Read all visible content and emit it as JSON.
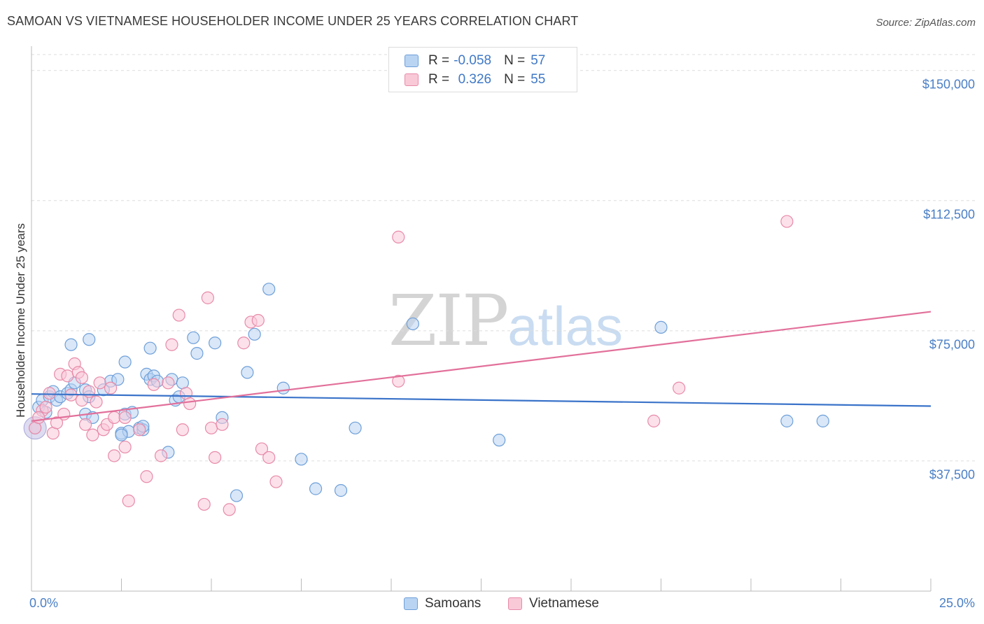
{
  "header": {
    "title": "SAMOAN VS VIETNAMESE HOUSEHOLDER INCOME UNDER 25 YEARS CORRELATION CHART",
    "source": "Source: ZipAtlas.com"
  },
  "watermark": {
    "zip": "ZIP",
    "atlas": "atlas"
  },
  "legend_top": {
    "rows": [
      {
        "r_label": "R =",
        "r_value": "-0.058",
        "n_label": "N =",
        "n_value": "57"
      },
      {
        "r_label": "R =",
        "r_value": "0.326",
        "n_label": "N =",
        "n_value": "55"
      }
    ]
  },
  "colors": {
    "samoans_fill": "#b9d4f3",
    "samoans_stroke": "#6e9fd9",
    "samoans_line": "#3a73c9",
    "vietnamese_fill": "#f9c9d8",
    "vietnamese_stroke": "#e88aa8",
    "vietnamese_line": "#e2709a"
  },
  "chart_data": {
    "type": "scatter",
    "title": "SAMOAN VS VIETNAMESE HOUSEHOLDER INCOME UNDER 25 YEARS CORRELATION CHART",
    "xlabel": "",
    "ylabel": "Householder Income Under 25 years",
    "xlim": [
      0,
      25
    ],
    "ylim": [
      0,
      157000
    ],
    "y_ticks": [
      {
        "value": 37500,
        "label": "$37,500"
      },
      {
        "value": 75000,
        "label": "$75,000"
      },
      {
        "value": 112500,
        "label": "$112,500"
      },
      {
        "value": 150000,
        "label": "$150,000"
      }
    ],
    "x_ticks": [
      {
        "value": 0,
        "label": "0.0%"
      },
      {
        "value": 25,
        "label": "25.0%"
      }
    ],
    "legend": [
      "Samoans",
      "Vietnamese"
    ],
    "series": [
      {
        "name": "Samoans",
        "r": -0.058,
        "n": 57,
        "trend": {
          "x": [
            0,
            25
          ],
          "y": [
            56800,
            53300
          ]
        },
        "points": [
          [
            0.1,
            47000
          ],
          [
            0.2,
            53000
          ],
          [
            0.3,
            55000
          ],
          [
            0.4,
            51500
          ],
          [
            0.5,
            56000
          ],
          [
            0.6,
            57500
          ],
          [
            0.7,
            55000
          ],
          [
            0.8,
            56000
          ],
          [
            1.0,
            57000
          ],
          [
            1.1,
            58000
          ],
          [
            1.2,
            60000
          ],
          [
            1.5,
            58000
          ],
          [
            1.6,
            56000
          ],
          [
            1.5,
            51000
          ],
          [
            1.7,
            50000
          ],
          [
            2.0,
            58000
          ],
          [
            2.2,
            60500
          ],
          [
            2.4,
            61000
          ],
          [
            2.5,
            45500
          ],
          [
            2.6,
            51000
          ],
          [
            2.7,
            46000
          ],
          [
            2.8,
            51500
          ],
          [
            3.0,
            47000
          ],
          [
            3.1,
            46500
          ],
          [
            3.1,
            47500
          ],
          [
            3.2,
            62500
          ],
          [
            3.3,
            61000
          ],
          [
            3.4,
            62000
          ],
          [
            3.5,
            60500
          ],
          [
            3.8,
            40000
          ],
          [
            3.9,
            61000
          ],
          [
            4.0,
            55000
          ],
          [
            4.1,
            56000
          ],
          [
            4.2,
            60000
          ],
          [
            4.5,
            73000
          ],
          [
            4.6,
            68500
          ],
          [
            2.6,
            66000
          ],
          [
            1.6,
            72500
          ],
          [
            3.3,
            70000
          ],
          [
            1.1,
            71000
          ],
          [
            5.1,
            71500
          ],
          [
            5.3,
            50000
          ],
          [
            5.7,
            27500
          ],
          [
            6.0,
            63000
          ],
          [
            6.2,
            74000
          ],
          [
            6.6,
            87000
          ],
          [
            7.0,
            58500
          ],
          [
            7.5,
            38000
          ],
          [
            7.9,
            29500
          ],
          [
            8.6,
            29000
          ],
          [
            9.0,
            47000
          ],
          [
            10.6,
            77000
          ],
          [
            13.0,
            43500
          ],
          [
            17.5,
            76000
          ],
          [
            21.0,
            49000
          ],
          [
            22.0,
            49000
          ],
          [
            2.5,
            45000
          ]
        ]
      },
      {
        "name": "Vietnamese",
        "r": 0.326,
        "n": 55,
        "trend": {
          "x": [
            0,
            25
          ],
          "y": [
            49000,
            80500
          ]
        },
        "points": [
          [
            0.1,
            47000
          ],
          [
            0.3,
            52000
          ],
          [
            0.4,
            53000
          ],
          [
            0.5,
            57000
          ],
          [
            0.6,
            45500
          ],
          [
            0.8,
            62500
          ],
          [
            0.9,
            51000
          ],
          [
            1.0,
            62000
          ],
          [
            1.1,
            56500
          ],
          [
            1.2,
            65500
          ],
          [
            1.3,
            63000
          ],
          [
            1.4,
            55000
          ],
          [
            1.4,
            61500
          ],
          [
            1.5,
            48000
          ],
          [
            1.6,
            57500
          ],
          [
            1.7,
            45000
          ],
          [
            1.8,
            54500
          ],
          [
            2.0,
            46500
          ],
          [
            2.1,
            48000
          ],
          [
            2.2,
            58500
          ],
          [
            2.3,
            50000
          ],
          [
            2.3,
            39000
          ],
          [
            2.6,
            41500
          ],
          [
            2.6,
            50000
          ],
          [
            2.7,
            26000
          ],
          [
            3.0,
            46500
          ],
          [
            3.2,
            33000
          ],
          [
            3.4,
            59500
          ],
          [
            3.6,
            39000
          ],
          [
            3.8,
            60000
          ],
          [
            3.9,
            71000
          ],
          [
            4.1,
            79500
          ],
          [
            4.2,
            46500
          ],
          [
            4.3,
            57000
          ],
          [
            4.4,
            54000
          ],
          [
            4.8,
            25000
          ],
          [
            4.9,
            84500
          ],
          [
            5.0,
            47000
          ],
          [
            5.1,
            38500
          ],
          [
            5.3,
            48000
          ],
          [
            5.5,
            23500
          ],
          [
            5.9,
            71500
          ],
          [
            6.1,
            77500
          ],
          [
            6.3,
            78000
          ],
          [
            6.4,
            41000
          ],
          [
            6.6,
            38500
          ],
          [
            6.8,
            31500
          ],
          [
            10.2,
            102000
          ],
          [
            10.2,
            60500
          ],
          [
            17.3,
            49000
          ],
          [
            18.0,
            58500
          ],
          [
            21.0,
            106500
          ],
          [
            0.2,
            50000
          ],
          [
            0.7,
            48500
          ],
          [
            1.9,
            60000
          ]
        ]
      }
    ]
  },
  "bottom_legend": [
    {
      "label": "Samoans"
    },
    {
      "label": "Vietnamese"
    }
  ]
}
